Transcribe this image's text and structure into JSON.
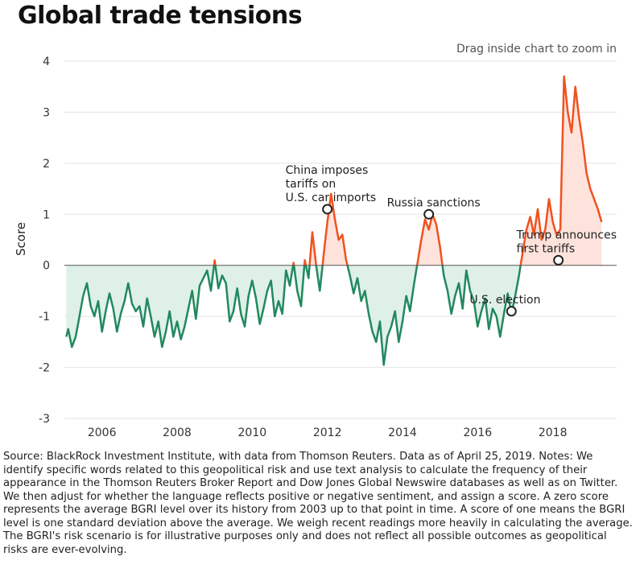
{
  "title": "Global trade tensions",
  "zoom_hint": "Drag inside chart to zoom in",
  "source_note": "Source: BlackRock Investment Institute, with data from Thomson Reuters. Data as of April 25, 2019. Notes: We identify specific words related to this geopolitical risk and use text analysis to calculate the frequency of their appearance in the Thomson Reuters Broker Report and Dow Jones Global Newswire databases as well as on Twitter. We then adjust for whether the language reflects positive or negative sentiment, and assign a score. A zero score represents the average BGRI level over its history from 2003 up to that point in time. A score of one means the BGRI level is one standard deviation above the average. We weigh recent readings more heavily in calculating the average. The BGRI's risk scenario is for illustrative purposes only and does not reflect all possible outcomes as geopolitical risks are ever-evolving.",
  "chart_data": {
    "type": "area",
    "title": "Global trade tensions",
    "ylabel": "Score",
    "xlabel": "",
    "xlim": [
      2005.0,
      2019.7
    ],
    "ylim": [
      -3,
      4
    ],
    "x_ticks": [
      2006,
      2008,
      2010,
      2012,
      2014,
      2016,
      2018
    ],
    "y_ticks": [
      -3,
      -2,
      -1,
      0,
      1,
      2,
      3,
      4
    ],
    "grid": "horizontal",
    "colors": {
      "positive": "#f0521f",
      "negative": "#21895e",
      "positive_fill": "#fde3dc",
      "negative_fill": "#dff0e8"
    },
    "series": [
      {
        "x": [
          2005.05,
          2005.1,
          2005.2,
          2005.3,
          2005.4,
          2005.5,
          2005.6,
          2005.7,
          2005.8,
          2005.9,
          2006.0,
          2006.1,
          2006.2,
          2006.3,
          2006.4,
          2006.5,
          2006.6,
          2006.7,
          2006.8,
          2006.9,
          2007.0,
          2007.1,
          2007.2,
          2007.3,
          2007.4,
          2007.5,
          2007.6,
          2007.7,
          2007.8,
          2007.9,
          2008.0,
          2008.1,
          2008.2,
          2008.3,
          2008.4,
          2008.5,
          2008.6,
          2008.7,
          2008.8,
          2008.9,
          2009.0,
          2009.1,
          2009.2,
          2009.3,
          2009.4,
          2009.5,
          2009.6,
          2009.7,
          2009.8,
          2009.9,
          2010.0,
          2010.1,
          2010.2,
          2010.3,
          2010.4,
          2010.5,
          2010.6,
          2010.7,
          2010.8,
          2010.9,
          2011.0,
          2011.1,
          2011.2,
          2011.3,
          2011.4,
          2011.5,
          2011.6,
          2011.7,
          2011.8,
          2011.9,
          2012.0,
          2012.1,
          2012.2,
          2012.3,
          2012.4,
          2012.5,
          2012.6,
          2012.7,
          2012.8,
          2012.9,
          2013.0,
          2013.1,
          2013.2,
          2013.3,
          2013.4,
          2013.5,
          2013.6,
          2013.7,
          2013.8,
          2013.9,
          2014.0,
          2014.1,
          2014.2,
          2014.3,
          2014.4,
          2014.5,
          2014.6,
          2014.7,
          2014.8,
          2014.9,
          2015.0,
          2015.1,
          2015.2,
          2015.3,
          2015.4,
          2015.5,
          2015.6,
          2015.7,
          2015.8,
          2015.9,
          2016.0,
          2016.1,
          2016.2,
          2016.3,
          2016.4,
          2016.5,
          2016.6,
          2016.7,
          2016.8,
          2016.9,
          2017.0,
          2017.1,
          2017.2,
          2017.3,
          2017.4,
          2017.5,
          2017.6,
          2017.7,
          2017.8,
          2017.9,
          2018.0,
          2018.1,
          2018.2,
          2018.3,
          2018.4,
          2018.5,
          2018.6,
          2018.7,
          2018.8,
          2018.9,
          2019.0,
          2019.1,
          2019.2,
          2019.3
        ],
        "y": [
          -1.4,
          -1.25,
          -1.6,
          -1.4,
          -1.0,
          -0.6,
          -0.35,
          -0.8,
          -1.0,
          -0.7,
          -1.3,
          -0.9,
          -0.55,
          -0.85,
          -1.3,
          -0.95,
          -0.7,
          -0.35,
          -0.75,
          -0.9,
          -0.8,
          -1.2,
          -0.65,
          -1.0,
          -1.4,
          -1.1,
          -1.6,
          -1.3,
          -0.9,
          -1.4,
          -1.1,
          -1.45,
          -1.2,
          -0.85,
          -0.5,
          -1.05,
          -0.4,
          -0.25,
          -0.1,
          -0.5,
          0.1,
          -0.45,
          -0.2,
          -0.35,
          -1.1,
          -0.9,
          -0.45,
          -0.95,
          -1.2,
          -0.6,
          -0.3,
          -0.65,
          -1.15,
          -0.85,
          -0.5,
          -0.3,
          -1.0,
          -0.7,
          -0.95,
          -0.1,
          -0.4,
          0.05,
          -0.5,
          -0.8,
          0.1,
          -0.25,
          0.65,
          0.0,
          -0.5,
          0.2,
          0.85,
          1.4,
          0.9,
          0.5,
          0.6,
          0.1,
          -0.2,
          -0.55,
          -0.25,
          -0.7,
          -0.5,
          -0.95,
          -1.3,
          -1.5,
          -1.1,
          -1.95,
          -1.4,
          -1.2,
          -0.9,
          -1.5,
          -1.1,
          -0.6,
          -0.9,
          -0.4,
          0.05,
          0.5,
          0.9,
          0.7,
          1.0,
          0.8,
          0.35,
          -0.2,
          -0.5,
          -0.95,
          -0.6,
          -0.35,
          -0.85,
          -0.1,
          -0.5,
          -0.7,
          -1.2,
          -0.9,
          -0.65,
          -1.25,
          -0.85,
          -1.0,
          -1.4,
          -0.95,
          -0.55,
          -0.95,
          -0.6,
          -0.2,
          0.25,
          0.7,
          0.95,
          0.6,
          1.1,
          0.5,
          0.7,
          1.3,
          0.85,
          0.6,
          0.7,
          3.7,
          3.0,
          2.6,
          3.5,
          2.9,
          2.4,
          1.8,
          1.5,
          1.3,
          1.1,
          0.85
        ]
      }
    ],
    "annotations": [
      {
        "x": 2012.0,
        "y": 1.1,
        "lines": [
          "China imposes",
          "tariffs on",
          "U.S. car imports"
        ],
        "anchor": "above"
      },
      {
        "x": 2014.7,
        "y": 1.0,
        "lines": [
          "Russia sanctions"
        ],
        "anchor": "above"
      },
      {
        "x": 2018.15,
        "y": 0.1,
        "lines": [
          "Trump announces",
          "first tariffs"
        ],
        "anchor": "above"
      },
      {
        "x": 2016.9,
        "y": -0.9,
        "lines": [
          "U.S. election"
        ],
        "anchor": "above"
      }
    ]
  }
}
